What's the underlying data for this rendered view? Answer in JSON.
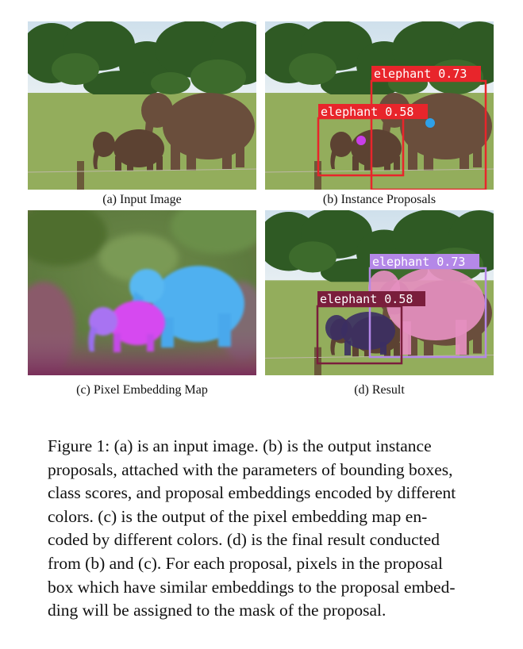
{
  "figure": {
    "panels": [
      {
        "id": "a",
        "caption": "(a) Input Image"
      },
      {
        "id": "b",
        "caption": "(b) Instance Proposals",
        "detections": [
          {
            "label": "elephant 0.73",
            "color": "#e8252b"
          },
          {
            "label": "elephant 0.58",
            "color": "#e8252b"
          }
        ]
      },
      {
        "id": "c",
        "caption": "(c) Pixel Embedding Map"
      },
      {
        "id": "d",
        "caption": "(d) Result",
        "detections": [
          {
            "label": "elephant 0.73",
            "color": "#b488e8"
          },
          {
            "label": "elephant 0.58",
            "color": "#7a1e3c"
          }
        ]
      }
    ],
    "caption_lines": [
      "Figure 1: (a) is an input image. (b) is the output instance",
      "proposals, attached with the parameters of bounding boxes,",
      "class scores, and proposal embeddings encoded by different",
      "colors. (c) is the output of the pixel embedding map en-",
      "coded by different colors. (d) is the final result conducted",
      "from (b) and (c). For each proposal, pixels in the proposal",
      "box which have similar embeddings to the proposal embed-",
      "ding will be assigned to the mask of the proposal."
    ]
  }
}
